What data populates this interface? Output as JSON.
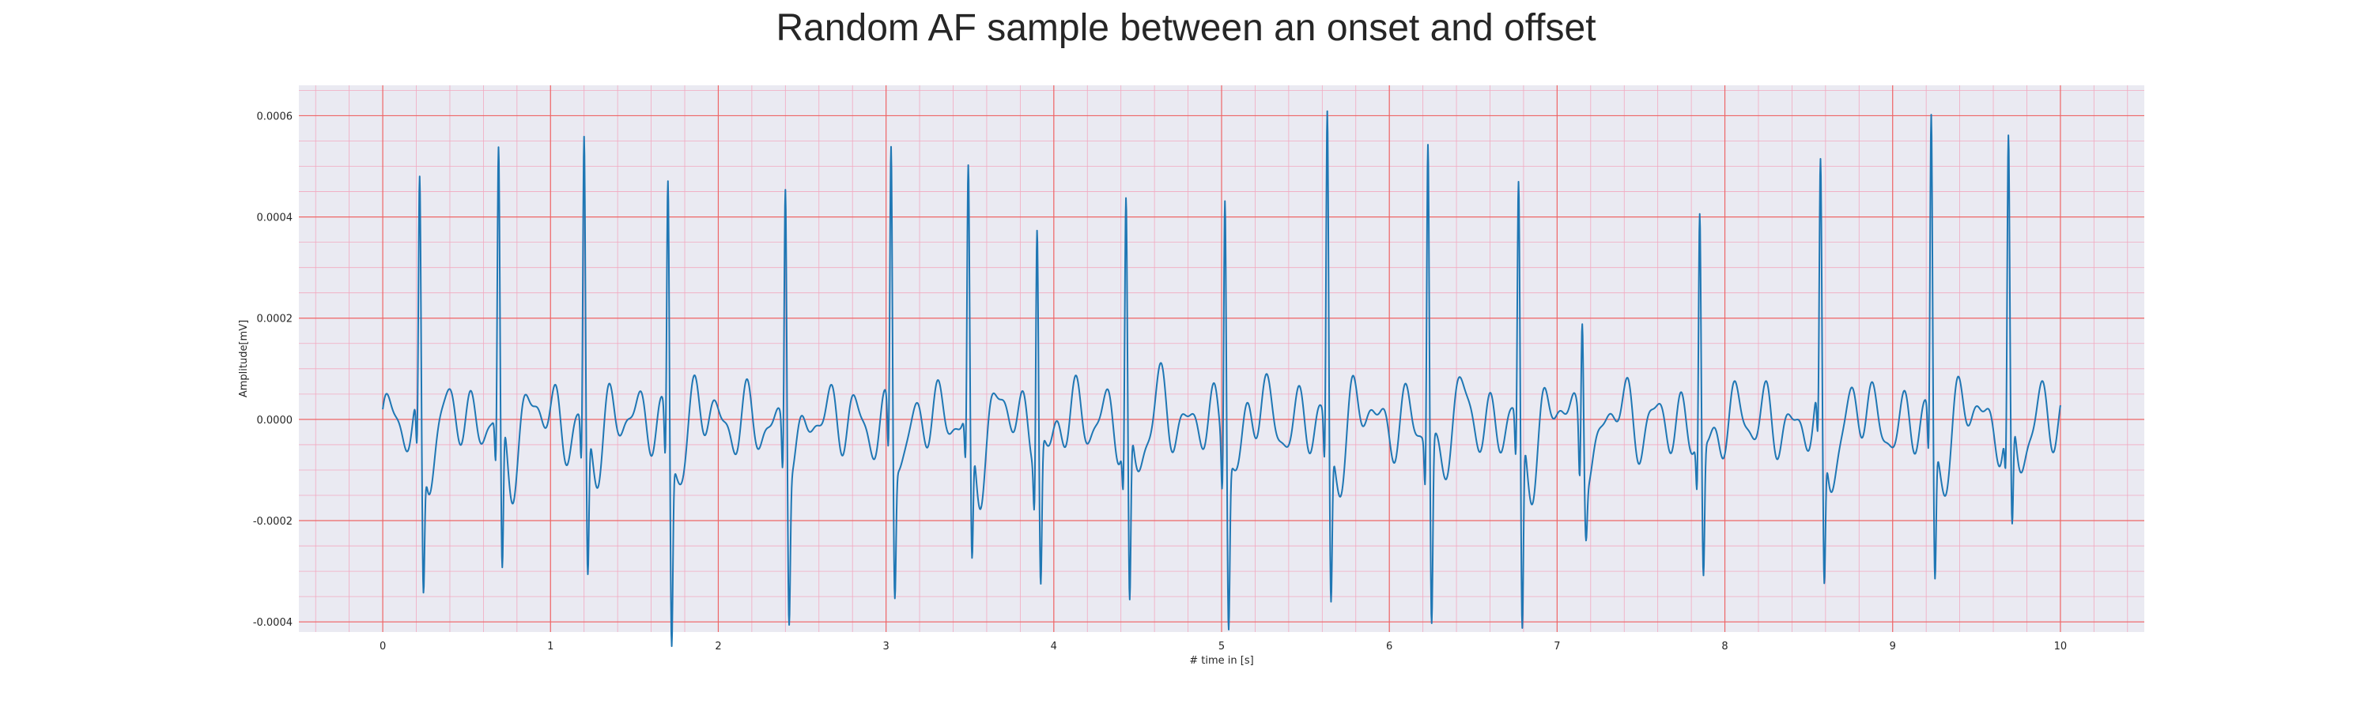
{
  "chart_data": {
    "type": "line",
    "title": "Random AF sample between an onset and offset",
    "xlabel": "# time in [s]",
    "ylabel": "Amplitude[mV]",
    "xlim": [
      -0.5,
      10.5
    ],
    "ylim": [
      -0.00042,
      0.00066
    ],
    "xticks": [
      0,
      1,
      2,
      3,
      4,
      5,
      6,
      7,
      8,
      9,
      10
    ],
    "xtick_labels": [
      "0",
      "1",
      "2",
      "3",
      "4",
      "5",
      "6",
      "7",
      "8",
      "9",
      "10"
    ],
    "yticks": [
      -0.0004,
      -0.0002,
      0.0,
      0.0002,
      0.0004,
      0.0006
    ],
    "ytick_labels": [
      "-0.0004",
      "-0.0002",
      "0.0000",
      "0.0002",
      "0.0004",
      "0.0006"
    ],
    "grid": true,
    "minor_grid": true,
    "colors": {
      "line": "#1f77b4",
      "plot_background": "#eaeaf2",
      "major_grid": "#ee6666",
      "minor_grid": "#f2a9c0"
    },
    "beats": [
      {
        "t": 0.22,
        "r": 0.00044,
        "s": -0.00026
      },
      {
        "t": 0.69,
        "r": 0.0005,
        "s": -0.00029
      },
      {
        "t": 1.2,
        "r": 0.00054,
        "s": -0.00027
      },
      {
        "t": 1.7,
        "r": 0.00048,
        "s": -0.00035
      },
      {
        "t": 2.4,
        "r": 0.0005,
        "s": -0.00027
      },
      {
        "t": 3.03,
        "r": 0.00055,
        "s": -0.00024
      },
      {
        "t": 3.49,
        "r": 0.00046,
        "s": -0.00024
      },
      {
        "t": 3.9,
        "r": 0.00043,
        "s": -0.00026
      },
      {
        "t": 4.43,
        "r": 0.00043,
        "s": -0.00033
      },
      {
        "t": 5.02,
        "r": 0.0005,
        "s": -0.0003
      },
      {
        "t": 5.63,
        "r": 0.00061,
        "s": -0.00029
      },
      {
        "t": 6.23,
        "r": 0.00058,
        "s": -0.00034
      },
      {
        "t": 6.77,
        "r": 0.00044,
        "s": -0.00038
      },
      {
        "t": 7.15,
        "r": 0.00025,
        "s": -8e-05
      },
      {
        "t": 7.85,
        "r": 0.00043,
        "s": -0.00024
      },
      {
        "t": 8.57,
        "r": 0.00044,
        "s": -0.00028
      },
      {
        "t": 9.23,
        "r": 0.00059,
        "s": -0.00025
      },
      {
        "t": 9.69,
        "r": 0.00051,
        "s": -0.00021
      }
    ],
    "series": [
      {
        "x_start": 0.0,
        "x_end": 10.0
      }
    ]
  }
}
